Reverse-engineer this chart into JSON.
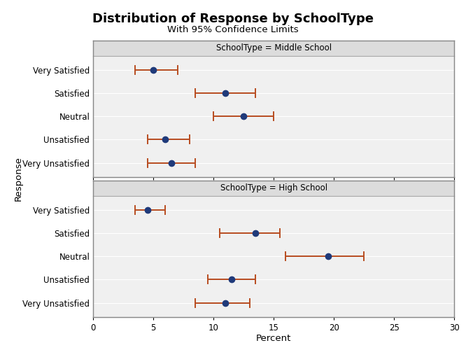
{
  "title": "Distribution of Response by SchoolType",
  "subtitle": "With 95% Confidence Limits",
  "xlabel": "Percent",
  "ylabel": "Response",
  "xlim": [
    0,
    30
  ],
  "xticks": [
    0,
    5,
    10,
    15,
    20,
    25,
    30
  ],
  "categories": [
    "Very Satisfied",
    "Satisfied",
    "Neutral",
    "Unsatisfied",
    "Very Unsatisfied"
  ],
  "panels": [
    {
      "label": "SchoolType = Middle School",
      "points": [
        5.0,
        11.0,
        12.5,
        6.0,
        6.5
      ],
      "lower": [
        3.5,
        8.5,
        10.0,
        4.5,
        4.5
      ],
      "upper": [
        7.0,
        13.5,
        15.0,
        8.0,
        8.5
      ]
    },
    {
      "label": "SchoolType = High School",
      "points": [
        4.5,
        13.5,
        19.5,
        11.5,
        11.0
      ],
      "lower": [
        3.5,
        10.5,
        16.0,
        9.5,
        8.5
      ],
      "upper": [
        6.0,
        15.5,
        22.5,
        13.5,
        13.0
      ]
    }
  ],
  "dot_color": "#1f3a7a",
  "errorbar_color": "#b84c20",
  "plot_bg": "#f0f0f0",
  "header_bg": "#dcdcdc",
  "header_border": "#aaaaaa",
  "outer_border": "#aaaaaa",
  "grid_color": "#ffffff",
  "title_fontsize": 13,
  "subtitle_fontsize": 9.5,
  "label_fontsize": 8.5,
  "tick_fontsize": 8.5,
  "header_fontsize": 8.5
}
